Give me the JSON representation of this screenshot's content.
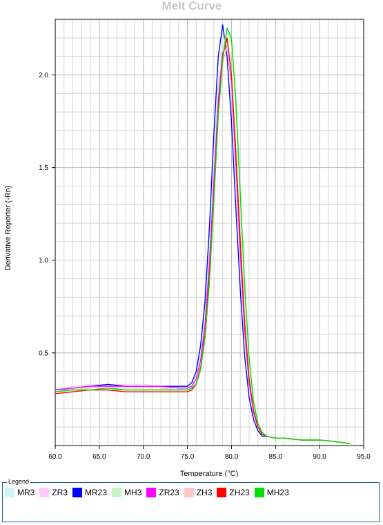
{
  "chart_data": {
    "type": "line",
    "title": "Melt Curve",
    "xlabel": "Temperature (°C)",
    "ylabel": "Derivative Reporter (-Rn)",
    "xlim": [
      60.0,
      95.0
    ],
    "ylim": [
      0.0,
      2.3
    ],
    "x_ticks": [
      "60.0",
      "65.0",
      "70.0",
      "75.0",
      "80.0",
      "85.0",
      "90.0",
      "95.0"
    ],
    "y_ticks": [
      "0.5",
      "1.0",
      "1.5",
      "2.0"
    ],
    "grid": true,
    "legend_title": "Legend",
    "legend_position": "bottom",
    "x": [
      60.0,
      62.0,
      64.0,
      66.0,
      68.0,
      70.0,
      72.0,
      74.0,
      75.0,
      75.5,
      76.0,
      76.5,
      77.0,
      77.5,
      78.0,
      78.5,
      79.0,
      79.5,
      80.0,
      80.5,
      81.0,
      81.5,
      82.0,
      82.5,
      83.0,
      83.5,
      84.0,
      85.0,
      86.0,
      88.0,
      90.0,
      92.0,
      93.5
    ],
    "series": [
      {
        "name": "MR3",
        "color": "#ccf5f5",
        "values": [
          0.3,
          0.31,
          0.31,
          0.32,
          0.32,
          0.32,
          0.32,
          0.31,
          0.31,
          0.33,
          0.38,
          0.5,
          0.72,
          1.08,
          1.55,
          1.98,
          2.22,
          2.2,
          1.92,
          1.45,
          0.98,
          0.58,
          0.32,
          0.17,
          0.09,
          0.06,
          0.05,
          0.04,
          0.04,
          0.03,
          0.03,
          0.02,
          0.01
        ]
      },
      {
        "name": "ZR3",
        "color": "#ffc8ff",
        "values": [
          0.3,
          0.32,
          0.33,
          0.33,
          0.33,
          0.33,
          0.32,
          0.31,
          0.31,
          0.32,
          0.36,
          0.46,
          0.66,
          1.0,
          1.45,
          1.9,
          2.15,
          2.18,
          1.96,
          1.52,
          1.04,
          0.62,
          0.34,
          0.18,
          0.1,
          0.06,
          0.05,
          0.04,
          0.04,
          0.03,
          0.03,
          0.02,
          0.01
        ]
      },
      {
        "name": "MR23",
        "color": "#0000ff",
        "values": [
          0.3,
          0.31,
          0.32,
          0.33,
          0.32,
          0.32,
          0.32,
          0.32,
          0.32,
          0.34,
          0.4,
          0.54,
          0.78,
          1.18,
          1.68,
          2.1,
          2.27,
          2.1,
          1.75,
          1.28,
          0.84,
          0.48,
          0.26,
          0.14,
          0.08,
          0.05,
          0.05,
          0.04,
          0.04,
          0.03,
          0.03,
          0.02,
          0.01
        ]
      },
      {
        "name": "MH3",
        "color": "#c8f5c8",
        "values": [
          0.29,
          0.3,
          0.31,
          0.31,
          0.31,
          0.31,
          0.31,
          0.3,
          0.3,
          0.31,
          0.34,
          0.42,
          0.6,
          0.92,
          1.36,
          1.82,
          2.12,
          2.26,
          2.16,
          1.8,
          1.3,
          0.8,
          0.44,
          0.22,
          0.11,
          0.07,
          0.05,
          0.04,
          0.04,
          0.03,
          0.03,
          0.02,
          0.01
        ]
      },
      {
        "name": "ZR23",
        "color": "#ff00ff",
        "values": [
          0.3,
          0.31,
          0.32,
          0.32,
          0.32,
          0.32,
          0.32,
          0.31,
          0.31,
          0.32,
          0.36,
          0.46,
          0.65,
          0.98,
          1.42,
          1.86,
          2.12,
          2.16,
          1.96,
          1.52,
          1.04,
          0.62,
          0.34,
          0.18,
          0.1,
          0.06,
          0.05,
          0.04,
          0.04,
          0.03,
          0.03,
          0.02,
          0.01
        ]
      },
      {
        "name": "ZH3",
        "color": "#ffc8c8",
        "values": [
          0.29,
          0.3,
          0.31,
          0.31,
          0.31,
          0.31,
          0.31,
          0.3,
          0.3,
          0.31,
          0.34,
          0.43,
          0.6,
          0.92,
          1.34,
          1.78,
          2.06,
          2.16,
          1.98,
          1.58,
          1.1,
          0.66,
          0.36,
          0.19,
          0.1,
          0.06,
          0.05,
          0.04,
          0.04,
          0.03,
          0.03,
          0.02,
          0.01
        ]
      },
      {
        "name": "ZH23",
        "color": "#ff0000",
        "values": [
          0.28,
          0.29,
          0.3,
          0.3,
          0.29,
          0.29,
          0.29,
          0.29,
          0.29,
          0.3,
          0.33,
          0.42,
          0.6,
          0.92,
          1.35,
          1.8,
          2.1,
          2.2,
          2.0,
          1.58,
          1.1,
          0.66,
          0.36,
          0.19,
          0.1,
          0.06,
          0.05,
          0.04,
          0.04,
          0.03,
          0.03,
          0.02,
          0.01
        ]
      },
      {
        "name": "MH23",
        "color": "#00e000",
        "values": [
          0.29,
          0.3,
          0.3,
          0.31,
          0.3,
          0.3,
          0.3,
          0.3,
          0.3,
          0.31,
          0.33,
          0.41,
          0.58,
          0.88,
          1.32,
          1.78,
          2.08,
          2.25,
          2.2,
          1.86,
          1.36,
          0.86,
          0.47,
          0.24,
          0.12,
          0.07,
          0.05,
          0.04,
          0.04,
          0.03,
          0.03,
          0.02,
          0.01
        ]
      }
    ]
  }
}
